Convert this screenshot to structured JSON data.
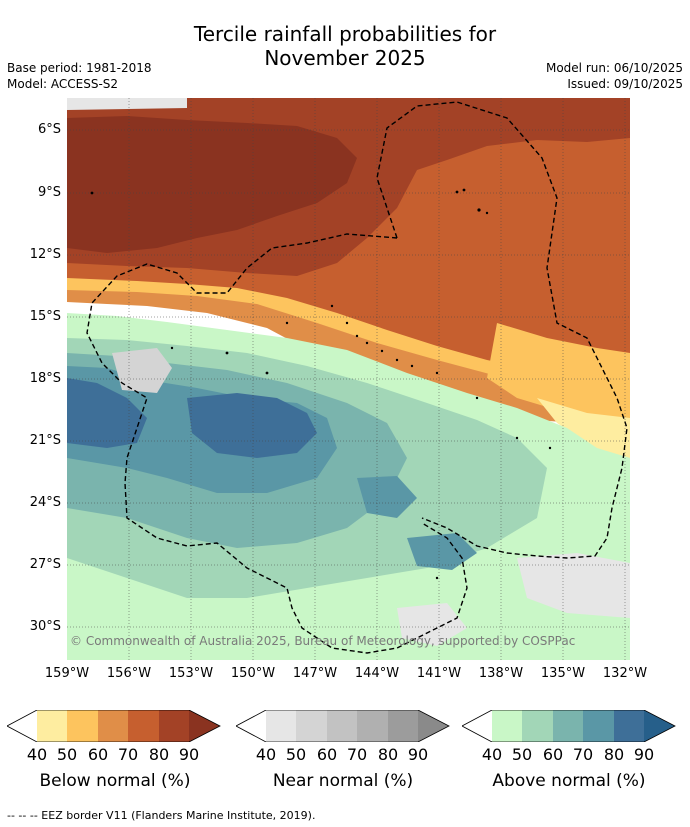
{
  "title": {
    "line1": "Tercile rainfall probabilities for",
    "line2": "November 2025"
  },
  "meta": {
    "base_period": "Base period: 1981-2018",
    "model": "Model: ACCESS-S2",
    "model_run": "Model run: 06/10/2025",
    "issued": "Issued: 09/10/2025"
  },
  "map": {
    "lat_ticks": [
      "6°S",
      "9°S",
      "12°S",
      "15°S",
      "18°S",
      "21°S",
      "24°S",
      "27°S",
      "30°S"
    ],
    "lon_ticks": [
      "159°W",
      "156°W",
      "153°W",
      "150°W",
      "147°W",
      "144°W",
      "141°W",
      "138°W",
      "135°W",
      "132°W"
    ],
    "copyright": "© Commonwealth of Australia 2025, Bureau of Meteorology, supported by COSPPac"
  },
  "colorbars": [
    {
      "label": "Below normal (%)",
      "ticks": [
        "40",
        "50",
        "60",
        "70",
        "80",
        "90"
      ],
      "colors": [
        "#ffffff",
        "#feeda0",
        "#fdc45e",
        "#e08e48",
        "#c65f2f",
        "#a34226",
        "#8a3320"
      ]
    },
    {
      "label": "Near normal (%)",
      "ticks": [
        "40",
        "50",
        "60",
        "70",
        "80",
        "90"
      ],
      "colors": [
        "#ffffff",
        "#e6e6e6",
        "#d4d4d4",
        "#c2c2c2",
        "#b0b0b0",
        "#9c9c9c",
        "#8a8a8a"
      ]
    },
    {
      "label": "Above normal (%)",
      "ticks": [
        "40",
        "50",
        "60",
        "70",
        "80",
        "90"
      ],
      "colors": [
        "#ffffff",
        "#c9f7c7",
        "#a2d6b7",
        "#7ab4ad",
        "#5a97a6",
        "#3e6f98",
        "#265f8a"
      ]
    }
  ],
  "footer": "--  --  -- EEZ border V11 (Flanders Marine Institute, 2019)."
}
